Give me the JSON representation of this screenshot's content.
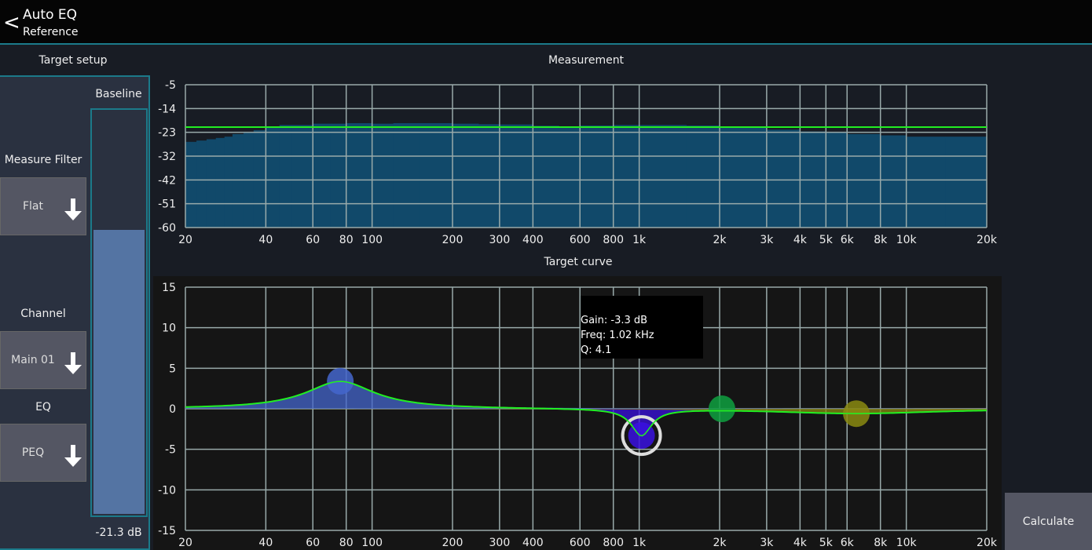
{
  "header": {
    "back_icon": "chevron-left-icon",
    "title": "Auto EQ",
    "subtitle": "Reference"
  },
  "target_setup": {
    "heading": "Target setup",
    "measure_filter": {
      "label": "Measure Filter",
      "value": "Flat"
    },
    "channel": {
      "label": "Channel",
      "value": "Main 01"
    },
    "eq": {
      "label": "EQ",
      "value": "PEQ"
    },
    "baseline": {
      "label": "Baseline",
      "value": "-21.3 dB",
      "level_db": -21.3,
      "fill_fraction": 0.7
    }
  },
  "calculate_label": "Calculate",
  "colors": {
    "accent": "#1b7a8a",
    "measurement_fill": "#11496a",
    "target_line": "#22ee22",
    "meter_fill": "#5474a3"
  },
  "chart_data": [
    {
      "type": "area",
      "title": "Measurement",
      "x_scale": "log",
      "xlim": [
        20,
        20000
      ],
      "x_ticks": [
        "20",
        "40",
        "60",
        "80",
        "100",
        "200",
        "300",
        "400",
        "600",
        "800",
        "1k",
        "2k",
        "3k",
        "4k",
        "5k",
        "6k",
        "8k",
        "10k",
        "20k"
      ],
      "y_ticks": [
        "-5",
        "-14",
        "-23",
        "-32",
        "-42",
        "-51",
        "-60"
      ],
      "ylim": [
        -60,
        -5
      ],
      "grid": true,
      "target_level": -21.3,
      "x": [
        20,
        22,
        24,
        26,
        28,
        30,
        33,
        36,
        40,
        45,
        50,
        60,
        70,
        80,
        100,
        120,
        150,
        200,
        250,
        300,
        400,
        500,
        600,
        800,
        1000,
        1500,
        2000,
        3000,
        4000,
        5000,
        6000,
        8000,
        10000,
        14000,
        20000
      ],
      "y": [
        -27,
        -26.5,
        -26,
        -25.5,
        -25,
        -24,
        -23.5,
        -22.5,
        -21.5,
        -20.5,
        -20.5,
        -20,
        -20,
        -19.8,
        -20,
        -19.8,
        -19.8,
        -20,
        -20.2,
        -20.3,
        -20.8,
        -21,
        -20.7,
        -20.5,
        -20.5,
        -20.7,
        -21.5,
        -22.3,
        -23,
        -23.5,
        -24,
        -24.5,
        -25,
        -25,
        -24
      ]
    },
    {
      "type": "line",
      "title": "Target curve",
      "x_scale": "log",
      "xlim": [
        20,
        20000
      ],
      "x_ticks": [
        "20",
        "40",
        "60",
        "80",
        "100",
        "200",
        "300",
        "400",
        "600",
        "800",
        "1k",
        "2k",
        "3k",
        "4k",
        "5k",
        "6k",
        "8k",
        "10k",
        "20k"
      ],
      "y_ticks": [
        "15",
        "10",
        "5",
        "0",
        "-5",
        "-10",
        "-15"
      ],
      "ylim": [
        -15,
        15
      ],
      "grid": true,
      "bands": [
        {
          "freq": 76,
          "gain": 3.4,
          "q": 1.2,
          "color": "#4466cc"
        },
        {
          "freq": 1020,
          "gain": -3.3,
          "q": 4.1,
          "color": "#3a10e0",
          "selected": true
        },
        {
          "freq": 2040,
          "gain": 0,
          "q": 1.0,
          "color": "#0ea040"
        },
        {
          "freq": 6500,
          "gain": -0.6,
          "q": 0.5,
          "color": "#8a8a10"
        }
      ],
      "tooltip": {
        "gain": "Gain: -3.3 dB",
        "freq": "Freq: 1.02 kHz",
        "q": "Q: 4.1"
      }
    }
  ]
}
